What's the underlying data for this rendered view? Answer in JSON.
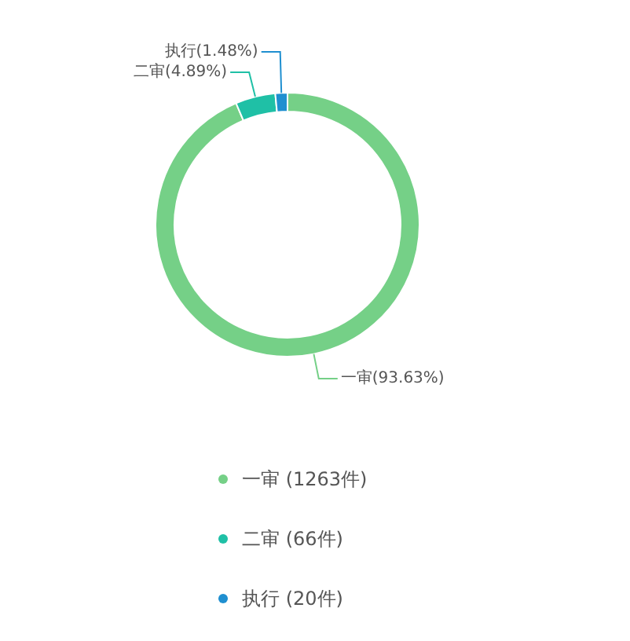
{
  "chart_data": {
    "type": "donut",
    "categories": [
      "一审  (1263件)",
      "二审  (66件)",
      "执行  (20件)"
    ],
    "values": [
      1263,
      66,
      20
    ],
    "colors": [
      "#75d087",
      "#1fc0a6",
      "#1f8fd0"
    ],
    "value_labels": [
      "一审(93.63%)",
      "二审(4.89%)",
      "执行(1.48%)"
    ],
    "legend": "bottom"
  }
}
